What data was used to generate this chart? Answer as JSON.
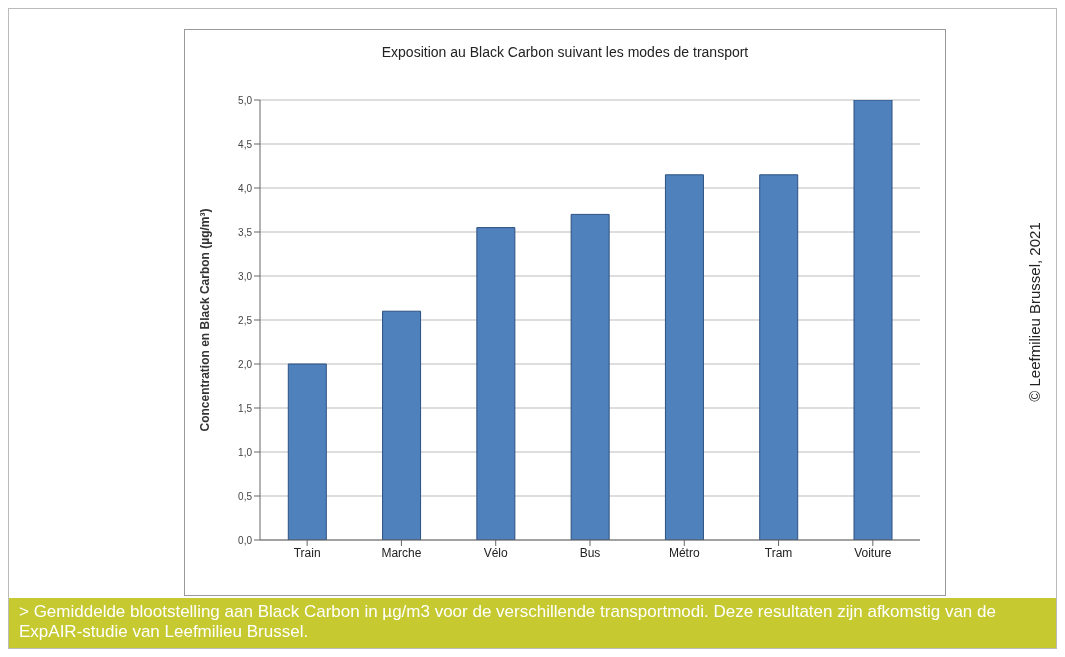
{
  "chart_data": {
    "type": "bar",
    "title": "Exposition au Black Carbon suivant les modes de transport",
    "ylabel": "Concentration en Black Carbon (µg/m³)",
    "categories": [
      "Train",
      "Marche",
      "Vélo",
      "Bus",
      "Métro",
      "Tram",
      "Voiture"
    ],
    "values": [
      2.0,
      2.6,
      3.55,
      3.7,
      4.15,
      4.15,
      5.0
    ],
    "color": "#4f81bd",
    "ylim": [
      0,
      5
    ],
    "yticks": [
      {
        "value": 0,
        "label": "0,0"
      },
      {
        "value": 0.5,
        "label": "0,5"
      },
      {
        "value": 1,
        "label": "1,0"
      },
      {
        "value": 1.5,
        "label": "1,5"
      },
      {
        "value": 2,
        "label": "2,0"
      },
      {
        "value": 2.5,
        "label": "2,5"
      },
      {
        "value": 3,
        "label": "3,0"
      },
      {
        "value": 3.5,
        "label": "3,5"
      },
      {
        "value": 4,
        "label": "4,0"
      },
      {
        "value": 4.5,
        "label": "4,5"
      },
      {
        "value": 5,
        "label": "5,0"
      }
    ],
    "grid": "y",
    "annotations": [
      "> Gemiddelde blootstelling aan Black Carbon in µg/m3 voor de verschillende transportmodi. Deze resultaten zijn afkomstig van de ExpAIR-studie van Leefmilieu Brussel.",
      "© Leefmilieu Brussel, 2021"
    ]
  }
}
